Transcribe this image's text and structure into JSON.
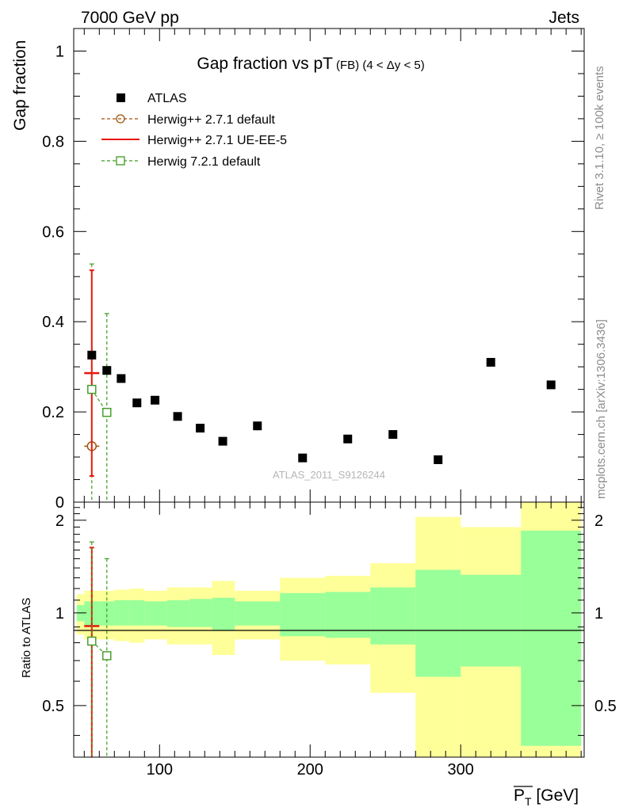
{
  "header": {
    "left": "7000 GeV pp",
    "right": "Jets"
  },
  "side_labels": {
    "rivet": "Rivet 3.1.10, ≥ 100k events",
    "mcplots": "mcplots.cern.ch [arXiv:1306.3436]"
  },
  "watermark": "ATLAS_2011_S9126244",
  "colors": {
    "atlas": "#000000",
    "herwigpp_default": "#a0520a",
    "herwigpp_ueee5": "#e8160c",
    "herwig7": "#3c9a1e",
    "band_inner": "#99ff99",
    "band_outer": "#ffff99"
  },
  "chart_data": {
    "type": "scatter",
    "title": "Gap fraction vs pT",
    "title_sub": "(FB) (4 < Δy < 5)",
    "xlabel": "P",
    "xlabel_sub": "T",
    "xlabel_unit": "[GeV]",
    "ylabel": "Gap fraction",
    "ratio_ylabel": "Ratio to ATLAS",
    "xlim": [
      43,
      382
    ],
    "ylim": [
      0,
      1.05
    ],
    "ratio_ylim": [
      0.34,
      2.29
    ],
    "x_ticks": [
      100,
      200,
      300
    ],
    "x_tick_labels": [
      "100",
      "200",
      "300"
    ],
    "y_ticks": [
      0,
      0.2,
      0.4,
      0.6,
      0.8,
      1
    ],
    "y_tick_labels": [
      "0",
      "0.2",
      "0.4",
      "0.6",
      "0.8",
      "1"
    ],
    "ratio_ticks": [
      0.5,
      1,
      2
    ],
    "ratio_tick_labels": [
      "0.5",
      "1",
      "2"
    ],
    "legend": [
      "ATLAS",
      "Herwig++ 2.7.1 default",
      "Herwig++ 2.7.1 UE-EE-5",
      "Herwig 7.2.1 default"
    ],
    "atlas": {
      "x": [
        55,
        65,
        74.5,
        85,
        97,
        112,
        127,
        142,
        165,
        195,
        225,
        255,
        285,
        320,
        360
      ],
      "y": [
        0.326,
        0.292,
        0.274,
        0.22,
        0.226,
        0.19,
        0.164,
        0.135,
        0.169,
        0.098,
        0.14,
        0.15,
        0.094,
        0.31,
        0.26
      ],
      "xerr": [
        5,
        5,
        4.5,
        5,
        7,
        8,
        7,
        8,
        15,
        15,
        15,
        15,
        15,
        20,
        20
      ]
    },
    "herwigpp_default": {
      "x": [
        55
      ],
      "y": [
        0.124
      ],
      "xerr": [
        5
      ],
      "ylo": [
        0.124
      ],
      "yhi": [
        0.124
      ]
    },
    "herwigpp_ueee5": {
      "x": [
        55
      ],
      "y": [
        0.286
      ],
      "xerr": [
        5
      ],
      "ylo": [
        0.058
      ],
      "yhi": [
        0.514
      ]
    },
    "herwig7": {
      "x": [
        55,
        65
      ],
      "y": [
        0.25,
        0.199
      ],
      "ylo": [
        0,
        0
      ],
      "yhi": [
        0.528,
        0.418
      ]
    },
    "ratio": {
      "bins": [
        [
          45,
          50
        ],
        [
          50,
          60
        ],
        [
          60,
          70
        ],
        [
          70,
          80
        ],
        [
          80,
          90
        ],
        [
          90,
          105
        ],
        [
          105,
          120
        ],
        [
          120,
          135
        ],
        [
          135,
          150
        ],
        [
          150,
          180
        ],
        [
          180,
          210
        ],
        [
          210,
          240
        ],
        [
          240,
          270
        ],
        [
          270,
          300
        ],
        [
          300,
          340
        ],
        [
          340,
          380
        ]
      ],
      "inner_lo": [
        0.94,
        0.91,
        0.91,
        0.91,
        0.91,
        0.91,
        0.9,
        0.9,
        0.88,
        0.91,
        0.84,
        0.83,
        0.79,
        0.62,
        0.67,
        0.37
      ],
      "inner_hi": [
        1.06,
        1.09,
        1.09,
        1.1,
        1.1,
        1.09,
        1.1,
        1.11,
        1.12,
        1.09,
        1.16,
        1.17,
        1.21,
        1.38,
        1.33,
        1.85
      ],
      "outer_lo": [
        0.85,
        0.82,
        0.82,
        0.81,
        0.8,
        0.82,
        0.79,
        0.79,
        0.73,
        0.82,
        0.7,
        0.68,
        0.55,
        0.34,
        0.34,
        0.34
      ],
      "outer_hi": [
        1.15,
        1.18,
        1.18,
        1.19,
        1.2,
        1.18,
        1.21,
        1.21,
        1.27,
        1.18,
        1.3,
        1.32,
        1.45,
        2.05,
        1.9,
        2.29
      ],
      "ueee5": {
        "x": [
          55
        ],
        "y": [
          0.906
        ],
        "xerr": [
          5
        ],
        "ylo": [
          0.34
        ],
        "yhi": [
          1.63
        ]
      },
      "herwig7": {
        "x": [
          55,
          65
        ],
        "y": [
          0.81,
          0.726
        ],
        "ylo": [
          0.34,
          0.34
        ],
        "yhi": [
          1.7,
          1.5
        ]
      }
    }
  }
}
